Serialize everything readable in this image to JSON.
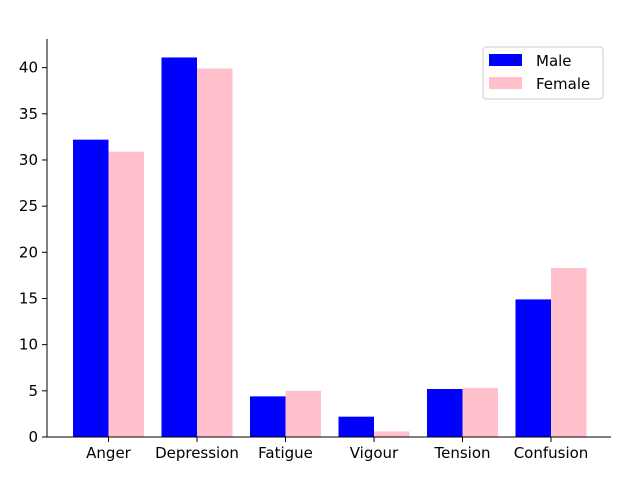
{
  "chart_data": {
    "type": "bar",
    "categories": [
      "Anger",
      "Depression",
      "Fatigue",
      "Vigour",
      "Tension",
      "Confusion"
    ],
    "series": [
      {
        "name": "Male",
        "color": "#0000ff",
        "values": [
          32.2,
          41.1,
          4.4,
          2.2,
          5.2,
          14.9
        ]
      },
      {
        "name": "Female",
        "color": "#ffc0cb",
        "values": [
          30.9,
          39.9,
          5.0,
          0.6,
          5.3,
          18.3
        ]
      }
    ],
    "title": "",
    "xlabel": "",
    "ylabel": "",
    "ylim": [
      0,
      43.1
    ],
    "yticks": [
      0,
      5,
      10,
      15,
      20,
      25,
      30,
      35,
      40
    ],
    "grid": false,
    "legend": "top-right"
  }
}
